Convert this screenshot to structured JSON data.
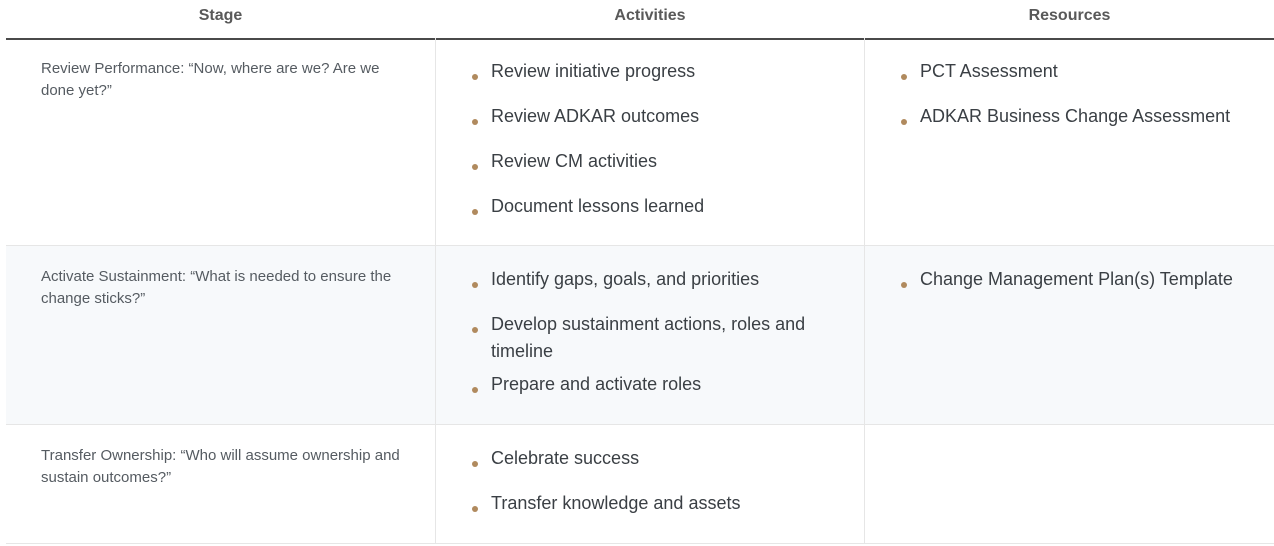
{
  "table": {
    "headers": {
      "stage": "Stage",
      "activities": "Activities",
      "resources": "Resources"
    },
    "rows": [
      {
        "stage": "Review Performance: “Now, where are we? Are we done yet?”",
        "activities": [
          "Review initiative progress",
          "Review ADKAR outcomes",
          "Review CM activities",
          "Document lessons learned"
        ],
        "resources": [
          "PCT Assessment",
          "ADKAR Business Change Assessment"
        ]
      },
      {
        "stage": "Activate Sustainment: “What is needed to ensure the change sticks?”",
        "activities": [
          "Identify gaps, goals, and priorities",
          "Develop sustainment actions, roles and timeline",
          "Prepare and activate roles"
        ],
        "resources": [
          "Change Management Plan(s) Template"
        ]
      },
      {
        "stage": "Transfer Ownership: “Who will assume ownership and sustain outcomes?”",
        "activities": [
          "Celebrate success",
          "Transfer knowledge and assets"
        ],
        "resources": []
      }
    ]
  },
  "colors": {
    "bullet": "#b08a5e",
    "header_rule": "#4a4a4a",
    "alt_row_bg": "#f7f9fb"
  },
  "icons": {
    "bullet": "bullet-dot-icon"
  }
}
